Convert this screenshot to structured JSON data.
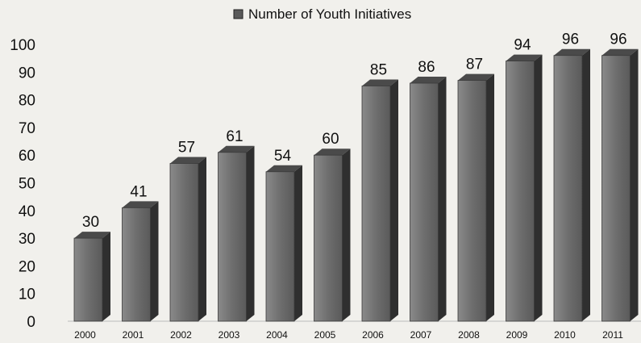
{
  "chart_data": {
    "type": "bar",
    "legend": {
      "label": "Number of Youth Initiatives",
      "placement": "top"
    },
    "categories": [
      "2000",
      "2001",
      "2002",
      "2003",
      "2004",
      "2005",
      "2006",
      "2007",
      "2008",
      "2009",
      "2010",
      "2011"
    ],
    "series": [
      {
        "name": "Number of Youth Initiatives",
        "values": [
          30,
          41,
          57,
          61,
          54,
          60,
          85,
          86,
          87,
          94,
          96,
          96
        ]
      }
    ],
    "ylim": [
      0,
      100
    ],
    "yticks": [
      0,
      10,
      20,
      30,
      40,
      50,
      60,
      70,
      80,
      90,
      100
    ],
    "grid": false,
    "colors": {
      "bar_front": "#6e6e6e",
      "bar_side": "#2f2f2f",
      "bar_top": "#4a4a4a",
      "text": "#111111"
    }
  }
}
